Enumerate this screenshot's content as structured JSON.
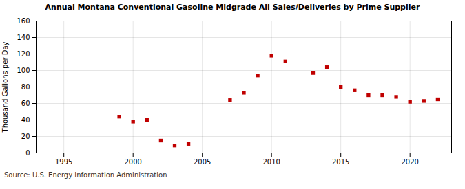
{
  "chart_data": {
    "type": "scatter",
    "title": "Annual Montana Conventional Gasoline Midgrade All Sales/Deliveries by Prime Supplier",
    "ylabel": "Thousand Gallons per Day",
    "source": "Source: U.S. Energy Information Administration",
    "x": [
      1999,
      2000,
      2001,
      2002,
      2003,
      2004,
      2007,
      2008,
      2009,
      2010,
      2011,
      2013,
      2014,
      2015,
      2016,
      2017,
      2018,
      2019,
      2020,
      2021,
      2022
    ],
    "values": [
      44,
      38,
      40,
      15,
      9,
      11,
      64,
      73,
      94,
      118,
      111,
      97,
      104,
      80,
      76,
      70,
      70,
      68,
      62,
      63,
      65
    ],
    "color": "#c00000",
    "marker": "square",
    "xlim": [
      1993,
      2023
    ],
    "ylim": [
      0,
      160
    ],
    "xticks": [
      1995,
      2000,
      2005,
      2010,
      2015,
      2020
    ],
    "yticks": [
      0,
      20,
      40,
      60,
      80,
      100,
      120,
      140,
      160
    ],
    "grid": true
  }
}
